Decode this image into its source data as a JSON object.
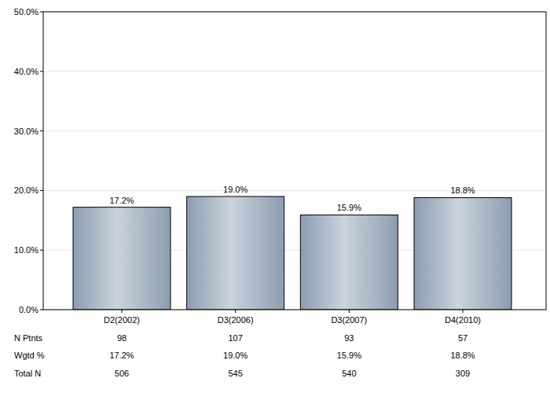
{
  "chart_data": {
    "type": "bar",
    "categories": [
      "D2(2002)",
      "D3(2006)",
      "D3(2007)",
      "D4(2010)"
    ],
    "values": [
      17.2,
      19.0,
      15.9,
      18.8
    ],
    "value_labels": [
      "17.2%",
      "19.0%",
      "15.9%",
      "18.8%"
    ],
    "data_labels": true,
    "color": "#8c9db1",
    "ylim": [
      0,
      50
    ],
    "yticks": [
      {
        "value": 0,
        "label": "0.0%"
      },
      {
        "value": 10,
        "label": "10.0%"
      },
      {
        "value": 20,
        "label": "20.0%"
      },
      {
        "value": 30,
        "label": "30.0%"
      },
      {
        "value": 40,
        "label": "40.0%"
      },
      {
        "value": 50,
        "label": "50.0%"
      }
    ],
    "grid": true
  },
  "table": {
    "rows": [
      {
        "label": "N Ptnts",
        "values": [
          "98",
          "107",
          "93",
          "57"
        ]
      },
      {
        "label": "Wgtd %",
        "values": [
          "17.2%",
          "19.0%",
          "15.9%",
          "18.8%"
        ]
      },
      {
        "label": "Total N",
        "values": [
          "506",
          "545",
          "540",
          "309"
        ]
      }
    ]
  }
}
